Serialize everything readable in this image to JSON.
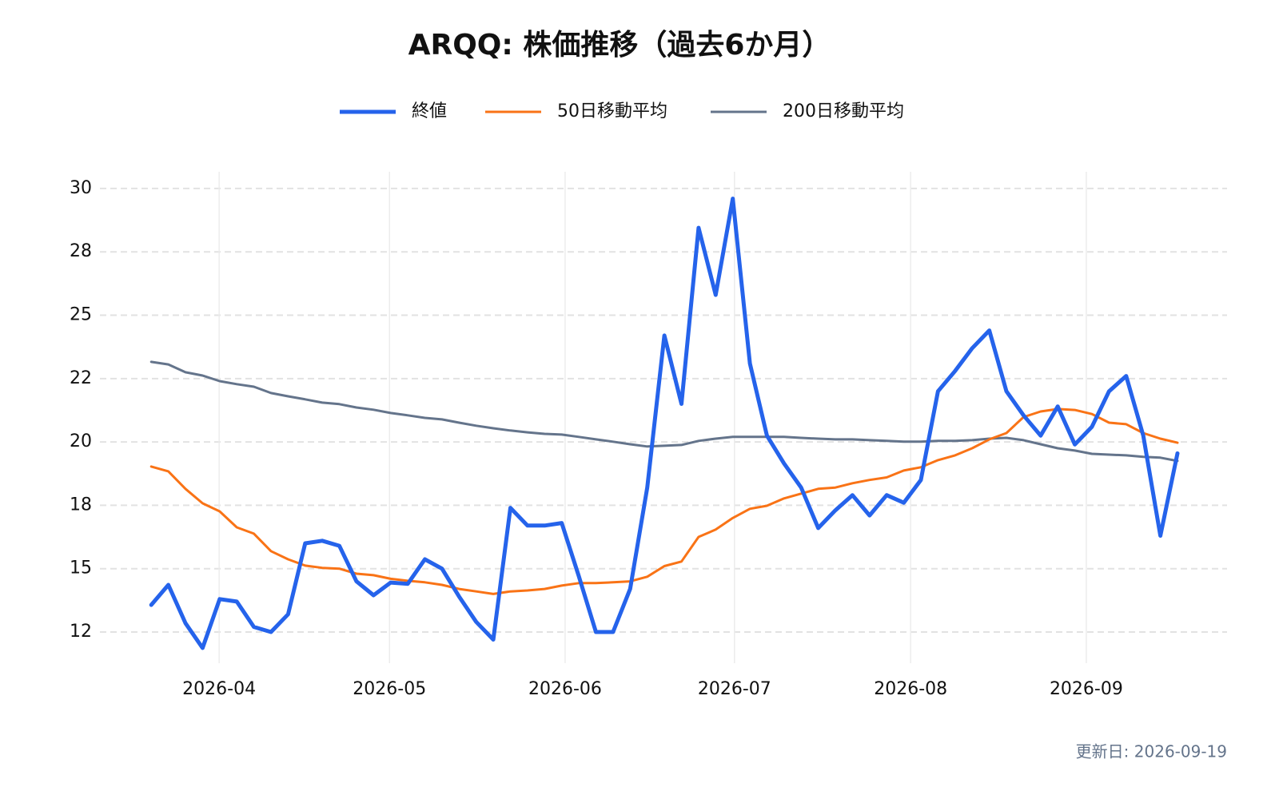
{
  "chart_data": {
    "type": "line",
    "title": "ARQQ: 株価推移（過去6か月）",
    "footer": "更新日: 2026-09-19",
    "series": [
      {
        "name": "終値",
        "color": "#2563eb",
        "width": 5,
        "values": [
          13.57,
          14.36,
          12.85,
          11.87,
          13.8,
          13.7,
          12.7,
          12.5,
          13.2,
          16.0,
          16.1,
          15.9,
          14.5,
          13.95,
          14.45,
          14.4,
          15.37,
          15.0,
          13.9,
          12.9,
          12.2,
          17.4,
          16.7,
          16.7,
          16.8,
          14.7,
          12.5,
          12.5,
          14.2,
          18.2,
          24.2,
          21.5,
          28.45,
          25.8,
          29.6,
          23.1,
          20.25,
          19.15,
          18.2,
          16.6,
          17.3,
          17.9,
          17.1,
          17.9,
          17.6,
          18.5,
          22.0,
          22.8,
          23.7,
          24.4,
          22.0,
          21.05,
          20.25,
          21.4,
          19.9,
          20.6,
          22.0,
          22.6,
          20.25,
          16.3,
          19.55
        ]
      },
      {
        "name": "50日移動平均",
        "color": "#f97316",
        "width": 3,
        "values": [
          19.03,
          18.84,
          18.15,
          17.58,
          17.26,
          16.63,
          16.38,
          15.69,
          15.37,
          15.12,
          15.03,
          15.0,
          14.8,
          14.74,
          14.6,
          14.52,
          14.46,
          14.36,
          14.2,
          14.1,
          14.0,
          14.1,
          14.14,
          14.2,
          14.33,
          14.43,
          14.43,
          14.46,
          14.5,
          14.68,
          15.1,
          15.28,
          16.25,
          16.54,
          17.0,
          17.36,
          17.48,
          17.77,
          17.96,
          18.15,
          18.2,
          18.37,
          18.5,
          18.6,
          18.87,
          19.0,
          19.28,
          19.47,
          19.75,
          20.1,
          20.35,
          20.98,
          21.2,
          21.3,
          21.26,
          21.1,
          20.76,
          20.7,
          20.35,
          20.13,
          19.97
        ]
      },
      {
        "name": "200日移動平均",
        "color": "#64748b",
        "width": 3,
        "values": [
          23.16,
          23.06,
          22.75,
          22.62,
          22.4,
          22.28,
          22.18,
          21.93,
          21.8,
          21.68,
          21.55,
          21.49,
          21.36,
          21.27,
          21.14,
          21.05,
          20.95,
          20.89,
          20.76,
          20.64,
          20.54,
          20.45,
          20.38,
          20.32,
          20.29,
          20.2,
          20.1,
          20.01,
          19.91,
          19.82,
          19.85,
          19.88,
          20.04,
          20.13,
          20.2,
          20.2,
          20.2,
          20.2,
          20.16,
          20.13,
          20.1,
          20.1,
          20.07,
          20.04,
          20.01,
          20.01,
          20.04,
          20.04,
          20.07,
          20.13,
          20.16,
          20.07,
          19.91,
          19.75,
          19.66,
          19.53,
          19.5,
          19.47,
          19.41,
          19.38,
          19.25
        ]
      }
    ],
    "xlim": [
      -3,
      62.9
    ],
    "xticks": [
      {
        "value": 3.97,
        "label": "2026-04"
      },
      {
        "value": 13.93,
        "label": "2026-05"
      },
      {
        "value": 24.2,
        "label": "2026-06"
      },
      {
        "value": 34.1,
        "label": "2026-07"
      },
      {
        "value": 44.4,
        "label": "2026-08"
      },
      {
        "value": 54.67,
        "label": "2026-09"
      }
    ],
    "ylim": [
      11.27,
      30.66
    ],
    "yticks": [
      {
        "value": 12.5,
        "label": "12"
      },
      15,
      {
        "value": 17.5,
        "label": "18"
      },
      20,
      {
        "value": 22.5,
        "label": "22"
      },
      25,
      {
        "value": 27.5,
        "label": "28"
      },
      30
    ],
    "grid": true
  }
}
